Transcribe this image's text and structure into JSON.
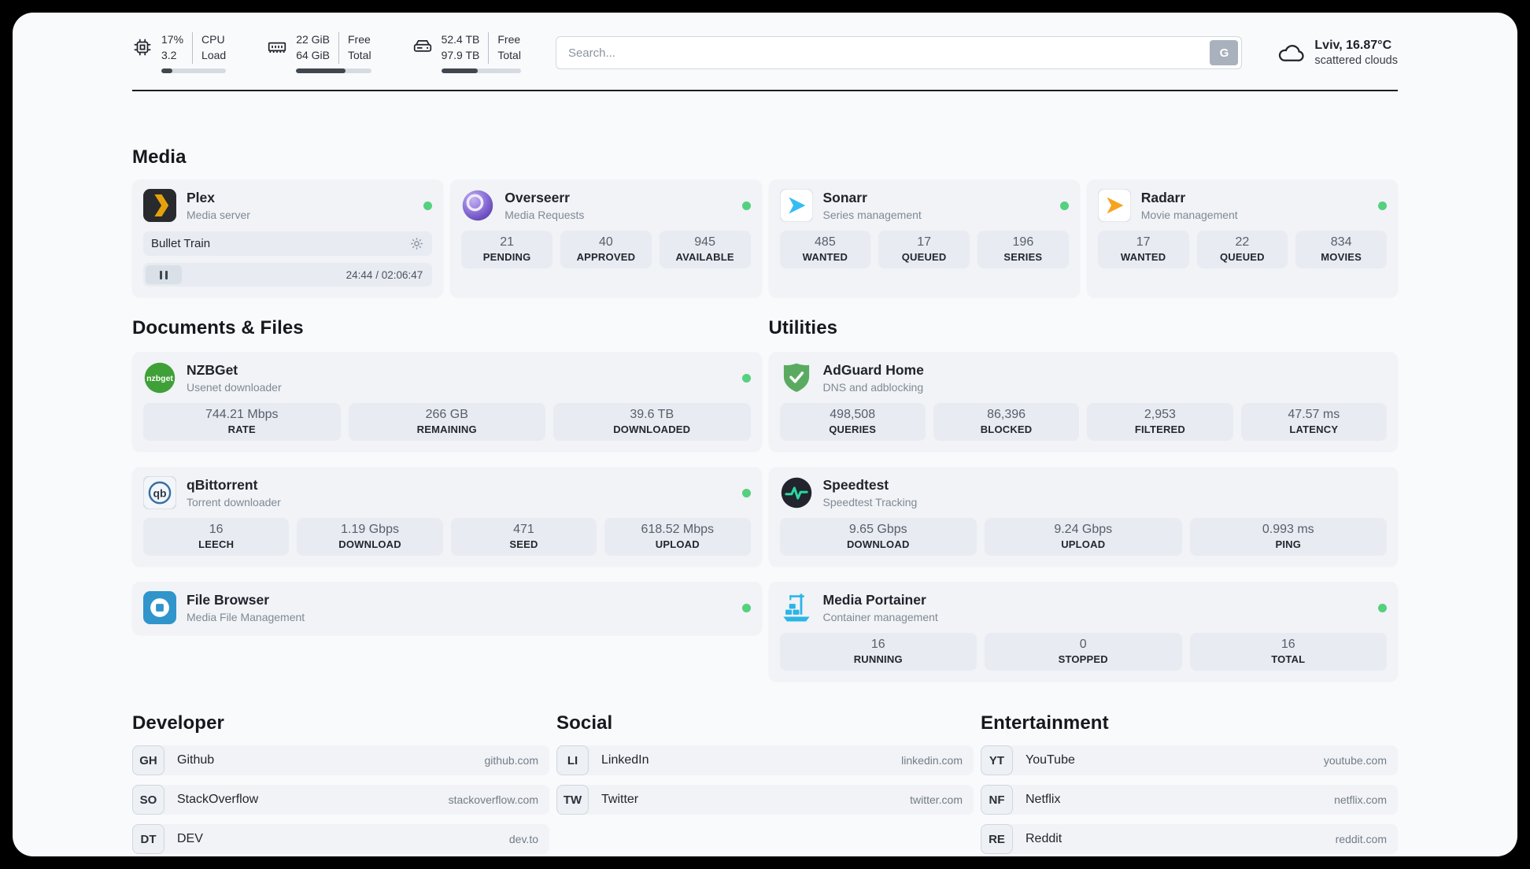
{
  "colors": {
    "status_online": "#55d07e",
    "plex_gold": "#e5a00d",
    "sonarr_blue": "#35bdf2",
    "radarr_amber": "#f7a320",
    "nzbget_green": "#3fa037",
    "adguard_green": "#5aab61",
    "speedtest_pulse": "#29d8a0",
    "portainer_blue": "#2cb4e8",
    "filebrowser_blue": "#2f95cb",
    "overseerr_purple": "#7c5cbf"
  },
  "header": {
    "cpu": {
      "icon": "cpu-icon",
      "values": [
        "17%",
        "3.2"
      ],
      "labels": [
        "CPU",
        "Load"
      ],
      "progress_pct": 17
    },
    "ram": {
      "icon": "ram-icon",
      "values": [
        "22 GiB",
        "64 GiB"
      ],
      "labels": [
        "Free",
        "Total"
      ],
      "progress_pct": 66
    },
    "disk": {
      "icon": "hard-drive-icon",
      "values": [
        "52.4 TB",
        "97.9 TB"
      ],
      "labels": [
        "Free",
        "Total"
      ],
      "progress_pct": 46
    },
    "search": {
      "placeholder": "Search...",
      "engine_button": "G"
    },
    "weather": {
      "icon": "cloud-icon",
      "location": "Lviv, 16.87°C",
      "condition": "scattered clouds"
    }
  },
  "media": {
    "title": "Media",
    "plex": {
      "name": "Plex",
      "subtitle": "Media server",
      "icon": "plex-icon",
      "online": true,
      "now_playing": {
        "title": "Bullet Train",
        "time": "24:44 / 02:06:47"
      }
    },
    "overseerr": {
      "name": "Overseerr",
      "subtitle": "Media Requests",
      "icon": "overseerr-icon",
      "online": true,
      "stats": [
        {
          "value": "21",
          "label": "PENDING"
        },
        {
          "value": "40",
          "label": "APPROVED"
        },
        {
          "value": "945",
          "label": "AVAILABLE"
        }
      ]
    },
    "sonarr": {
      "name": "Sonarr",
      "subtitle": "Series management",
      "icon": "sonarr-icon",
      "online": true,
      "stats": [
        {
          "value": "485",
          "label": "WANTED"
        },
        {
          "value": "17",
          "label": "QUEUED"
        },
        {
          "value": "196",
          "label": "SERIES"
        }
      ]
    },
    "radarr": {
      "name": "Radarr",
      "subtitle": "Movie management",
      "icon": "radarr-icon",
      "online": true,
      "stats": [
        {
          "value": "17",
          "label": "WANTED"
        },
        {
          "value": "22",
          "label": "QUEUED"
        },
        {
          "value": "834",
          "label": "MOVIES"
        }
      ]
    }
  },
  "documents": {
    "title": "Documents & Files",
    "nzbget": {
      "name": "NZBGet",
      "subtitle": "Usenet downloader",
      "icon": "nzbget-icon",
      "online": true,
      "stats": [
        {
          "value": "744.21 Mbps",
          "label": "RATE"
        },
        {
          "value": "266 GB",
          "label": "REMAINING"
        },
        {
          "value": "39.6 TB",
          "label": "DOWNLOADED"
        }
      ]
    },
    "qbittorrent": {
      "name": "qBittorrent",
      "subtitle": "Torrent downloader",
      "icon": "qbittorrent-icon",
      "online": true,
      "stats": [
        {
          "value": "16",
          "label": "LEECH"
        },
        {
          "value": "1.19 Gbps",
          "label": "DOWNLOAD"
        },
        {
          "value": "471",
          "label": "SEED"
        },
        {
          "value": "618.52 Mbps",
          "label": "UPLOAD"
        }
      ]
    },
    "filebrowser": {
      "name": "File Browser",
      "subtitle": "Media File Management",
      "icon": "filebrowser-icon",
      "online": true
    }
  },
  "utilities": {
    "title": "Utilities",
    "adguard": {
      "name": "AdGuard Home",
      "subtitle": "DNS and adblocking",
      "icon": "adguard-icon",
      "stats": [
        {
          "value": "498,508",
          "label": "QUERIES"
        },
        {
          "value": "86,396",
          "label": "BLOCKED"
        },
        {
          "value": "2,953",
          "label": "FILTERED"
        },
        {
          "value": "47.57 ms",
          "label": "LATENCY"
        }
      ]
    },
    "speedtest": {
      "name": "Speedtest",
      "subtitle": "Speedtest Tracking",
      "icon": "speedtest-icon",
      "stats": [
        {
          "value": "9.65 Gbps",
          "label": "DOWNLOAD"
        },
        {
          "value": "9.24 Gbps",
          "label": "UPLOAD"
        },
        {
          "value": "0.993 ms",
          "label": "PING"
        }
      ]
    },
    "portainer": {
      "name": "Media Portainer",
      "subtitle": "Container management",
      "icon": "portainer-icon",
      "online": true,
      "stats": [
        {
          "value": "16",
          "label": "RUNNING"
        },
        {
          "value": "0",
          "label": "STOPPED"
        },
        {
          "value": "16",
          "label": "TOTAL"
        }
      ]
    }
  },
  "bookmarks": {
    "developer": {
      "title": "Developer",
      "items": [
        {
          "abbr": "GH",
          "name": "Github",
          "url": "github.com"
        },
        {
          "abbr": "SO",
          "name": "StackOverflow",
          "url": "stackoverflow.com"
        },
        {
          "abbr": "DT",
          "name": "DEV",
          "url": "dev.to"
        }
      ]
    },
    "social": {
      "title": "Social",
      "items": [
        {
          "abbr": "LI",
          "name": "LinkedIn",
          "url": "linkedin.com"
        },
        {
          "abbr": "TW",
          "name": "Twitter",
          "url": "twitter.com"
        }
      ]
    },
    "entertainment": {
      "title": "Entertainment",
      "items": [
        {
          "abbr": "YT",
          "name": "YouTube",
          "url": "youtube.com"
        },
        {
          "abbr": "NF",
          "name": "Netflix",
          "url": "netflix.com"
        },
        {
          "abbr": "RE",
          "name": "Reddit",
          "url": "reddit.com"
        }
      ]
    }
  }
}
